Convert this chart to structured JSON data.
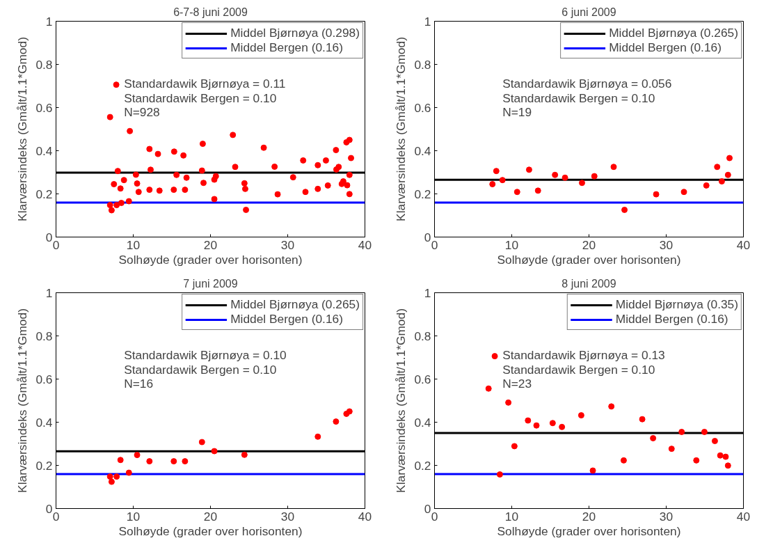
{
  "chart_data": [
    {
      "type": "scatter",
      "title": "6-7-8 juni 2009",
      "xlabel": "Solhøyde (grader over horisonten)",
      "ylabel": "Klarværsindeks (Gmålt/1.1*Gmod)",
      "xlim": [
        0,
        40
      ],
      "ylim": [
        0,
        1
      ],
      "xticks": [
        0,
        10,
        20,
        30,
        40
      ],
      "yticks": [
        0,
        0.2,
        0.4,
        0.6,
        0.8,
        1
      ],
      "grid": false,
      "legend": "top right",
      "marker": "circle",
      "series": [
        {
          "color": "#ff0000",
          "x": [
            7.5,
            8.0,
            8.8,
            10.7,
            12.25,
            13.4,
            15.6,
            16.9,
            19.1,
            20.7,
            23.2,
            24.6,
            28.7,
            32.3,
            35.2,
            36.6,
            37.2,
            38.0,
            38.2,
            7.0,
            7.2,
            7.85,
            8.35,
            9.44,
            10.5,
            12.1,
            15.25,
            16.7,
            18.9,
            20.5,
            24.4,
            33.9,
            36.25,
            37.6,
            38.0,
            7.0,
            7.8,
            8.46,
            9.56,
            10.35,
            12.1,
            13.2,
            15.3,
            16.5,
            19.0,
            20.5,
            22.9,
            24.5,
            26.9,
            28.3,
            30.7,
            32.0,
            33.9,
            34.95,
            36.3,
            37.0,
            37.7,
            38.0
          ],
          "values": [
            0.245,
            0.306,
            0.264,
            0.209,
            0.312,
            0.215,
            0.288,
            0.275,
            0.251,
            0.282,
            0.325,
            0.126,
            0.198,
            0.209,
            0.239,
            0.325,
            0.258,
            0.288,
            0.366,
            0.148,
            0.124,
            0.148,
            0.225,
            0.166,
            0.248,
            0.219,
            0.219,
            0.219,
            0.308,
            0.266,
            0.249,
            0.333,
            0.403,
            0.439,
            0.45,
            0.556,
            0.706,
            0.158,
            0.491,
            0.289,
            0.408,
            0.385,
            0.396,
            0.378,
            0.432,
            0.176,
            0.473,
            0.223,
            0.414,
            0.326,
            0.277,
            0.355,
            0.223,
            0.355,
            0.313,
            0.246,
            0.24,
            0.199
          ]
        }
      ],
      "ref_lines": [
        {
          "axis": "y",
          "value": 0.298,
          "label": "Middel Bjørnøya (0.298)",
          "color": "#000000"
        },
        {
          "axis": "y",
          "value": 0.16,
          "label": "Middel Bergen (0.16)",
          "color": "#0000ff"
        }
      ],
      "annotations": [
        "Standardawik Bjørnøya = 0.11",
        "Standardawik Bergen = 0.10",
        "N=928"
      ]
    },
    {
      "type": "scatter",
      "title": "6 juni 2009",
      "xlabel": "Solhøyde (grader over horisonten)",
      "ylabel": "Klarværsindeks (Gmålt/1.1*Gmod)",
      "xlim": [
        0,
        40
      ],
      "ylim": [
        0,
        1
      ],
      "xticks": [
        0,
        10,
        20,
        30,
        40
      ],
      "yticks": [
        0,
        0.2,
        0.4,
        0.6,
        0.8,
        1
      ],
      "grid": false,
      "legend": "top right",
      "marker": "circle",
      "series": [
        {
          "color": "#ff0000",
          "x": [
            7.5,
            8.0,
            8.8,
            10.7,
            12.25,
            13.4,
            15.6,
            16.9,
            19.1,
            20.7,
            23.2,
            24.6,
            28.7,
            32.3,
            35.2,
            36.6,
            37.2,
            38.0,
            38.2
          ],
          "values": [
            0.245,
            0.306,
            0.264,
            0.209,
            0.312,
            0.215,
            0.288,
            0.275,
            0.251,
            0.282,
            0.325,
            0.126,
            0.198,
            0.209,
            0.239,
            0.325,
            0.258,
            0.288,
            0.366
          ]
        }
      ],
      "ref_lines": [
        {
          "axis": "y",
          "value": 0.265,
          "label": "Middel Bjørnøya (0.265)",
          "color": "#000000"
        },
        {
          "axis": "y",
          "value": 0.16,
          "label": "Middel Bergen (0.16)",
          "color": "#0000ff"
        }
      ],
      "annotations": [
        "Standardawik Bjørnøya = 0.056",
        "Standardawik Bergen = 0.10",
        "N=19"
      ]
    },
    {
      "type": "scatter",
      "title": "7 juni 2009",
      "xlabel": "Solhøyde (grader over horisonten)",
      "ylabel": "Klarværsindeks (Gmålt/1.1*Gmod)",
      "xlim": [
        0,
        40
      ],
      "ylim": [
        0,
        1
      ],
      "xticks": [
        0,
        10,
        20,
        30,
        40
      ],
      "yticks": [
        0,
        0.2,
        0.4,
        0.6,
        0.8,
        1
      ],
      "grid": false,
      "legend": "top right",
      "marker": "circle",
      "series": [
        {
          "color": "#ff0000",
          "x": [
            7.0,
            7.2,
            7.85,
            8.35,
            9.44,
            10.5,
            12.1,
            15.25,
            16.7,
            18.9,
            20.5,
            24.4,
            33.9,
            36.25,
            37.6,
            38.0
          ],
          "values": [
            0.148,
            0.124,
            0.148,
            0.225,
            0.166,
            0.248,
            0.219,
            0.219,
            0.219,
            0.308,
            0.266,
            0.249,
            0.333,
            0.403,
            0.439,
            0.45
          ]
        }
      ],
      "ref_lines": [
        {
          "axis": "y",
          "value": 0.265,
          "label": "Middel Bjørnøya (0.265)",
          "color": "#000000"
        },
        {
          "axis": "y",
          "value": 0.16,
          "label": "Middel Bergen (0.16)",
          "color": "#0000ff"
        }
      ],
      "annotations": [
        "Standardawik Bjørnøya = 0.10",
        "Standardawik Bergen = 0.10",
        "N=16"
      ]
    },
    {
      "type": "scatter",
      "title": "8 juni 2009",
      "xlabel": "Solhøyde (grader over horisonten)",
      "ylabel": "Klarværsindeks (Gmålt/1.1*Gmod)",
      "xlim": [
        0,
        40
      ],
      "ylim": [
        0,
        1
      ],
      "xticks": [
        0,
        10,
        20,
        30,
        40
      ],
      "yticks": [
        0,
        0.2,
        0.4,
        0.6,
        0.8,
        1
      ],
      "grid": false,
      "legend": "top right",
      "marker": "circle",
      "series": [
        {
          "color": "#ff0000",
          "x": [
            7.0,
            7.8,
            8.46,
            9.56,
            10.35,
            12.1,
            13.2,
            15.3,
            16.5,
            19.0,
            20.5,
            22.9,
            24.5,
            26.9,
            28.3,
            30.7,
            32.0,
            33.9,
            34.95,
            36.3,
            37.0,
            37.7,
            38.0
          ],
          "values": [
            0.556,
            0.706,
            0.158,
            0.491,
            0.289,
            0.408,
            0.385,
            0.396,
            0.378,
            0.432,
            0.176,
            0.473,
            0.223,
            0.414,
            0.326,
            0.277,
            0.355,
            0.223,
            0.355,
            0.313,
            0.246,
            0.24,
            0.199
          ]
        }
      ],
      "ref_lines": [
        {
          "axis": "y",
          "value": 0.35,
          "label": "Middel Bjørnøya (0.35)",
          "color": "#000000"
        },
        {
          "axis": "y",
          "value": 0.16,
          "label": "Middel Bergen (0.16)",
          "color": "#0000ff"
        }
      ],
      "annotations": [
        "Standardawik Bjørnøya = 0.13",
        "Standardawik Bergen = 0.10",
        "N=23"
      ]
    }
  ]
}
